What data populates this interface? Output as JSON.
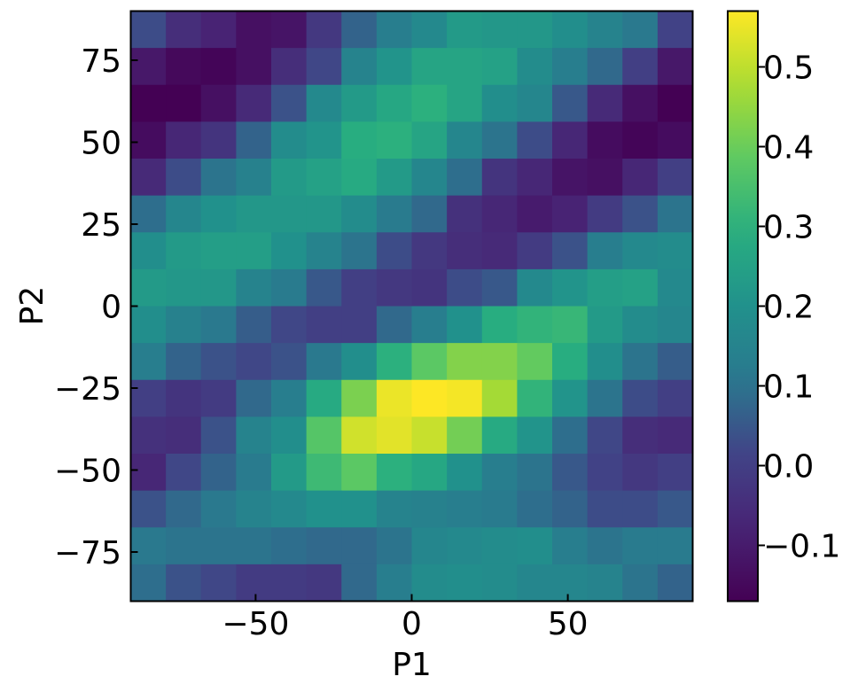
{
  "chart_data": {
    "type": "heatmap",
    "title": "",
    "xlabel": "P1",
    "ylabel": "P2",
    "xlim": [
      -90,
      90
    ],
    "ylim": [
      -90,
      90
    ],
    "x_ticks": [
      -50,
      0,
      50
    ],
    "x_tick_labels": [
      "−50",
      "0",
      "50"
    ],
    "y_ticks": [
      -75,
      -50,
      -25,
      0,
      25,
      50,
      75
    ],
    "y_tick_labels": [
      "−75",
      "−50",
      "−25",
      "0",
      "25",
      "50",
      "75"
    ],
    "colorbar": {
      "colormap": "viridis",
      "vmin": -0.17,
      "vmax": 0.57,
      "ticks": [
        -0.1,
        0.0,
        0.1,
        0.2,
        0.3,
        0.4,
        0.5
      ],
      "tick_labels": [
        "−0.1",
        "0.0",
        "0.1",
        "0.2",
        "0.3",
        "0.4",
        "0.5"
      ]
    },
    "grid": false,
    "rows_order": "top_to_bottom",
    "values": [
      [
        0.03,
        -0.05,
        -0.08,
        -0.13,
        -0.12,
        -0.02,
        0.07,
        0.13,
        0.17,
        0.23,
        0.22,
        0.22,
        0.19,
        0.15,
        0.11,
        0.01
      ],
      [
        -0.11,
        -0.15,
        -0.16,
        -0.13,
        -0.05,
        0.02,
        0.15,
        0.21,
        0.26,
        0.26,
        0.25,
        0.18,
        0.13,
        0.08,
        0.0,
        -0.11
      ],
      [
        -0.17,
        -0.17,
        -0.13,
        -0.06,
        0.04,
        0.17,
        0.23,
        0.27,
        0.3,
        0.26,
        0.19,
        0.16,
        0.05,
        -0.06,
        -0.13,
        -0.17
      ],
      [
        -0.14,
        -0.07,
        -0.03,
        0.07,
        0.18,
        0.21,
        0.29,
        0.3,
        0.26,
        0.16,
        0.1,
        0.03,
        -0.07,
        -0.14,
        -0.16,
        -0.14
      ],
      [
        -0.06,
        0.03,
        0.1,
        0.14,
        0.23,
        0.25,
        0.28,
        0.23,
        0.16,
        0.09,
        -0.03,
        -0.07,
        -0.12,
        -0.13,
        -0.07,
        0.0
      ],
      [
        0.09,
        0.16,
        0.2,
        0.22,
        0.22,
        0.22,
        0.18,
        0.12,
        0.08,
        -0.04,
        -0.07,
        -0.1,
        -0.08,
        -0.01,
        0.04,
        0.1
      ],
      [
        0.19,
        0.23,
        0.24,
        0.24,
        0.2,
        0.15,
        0.1,
        0.03,
        -0.02,
        -0.05,
        -0.06,
        -0.01,
        0.04,
        0.13,
        0.17,
        0.18
      ],
      [
        0.23,
        0.22,
        0.22,
        0.15,
        0.12,
        0.05,
        0.0,
        -0.02,
        -0.03,
        0.03,
        0.05,
        0.17,
        0.21,
        0.24,
        0.25,
        0.17
      ],
      [
        0.19,
        0.14,
        0.11,
        0.06,
        0.02,
        0.0,
        0.0,
        0.08,
        0.13,
        0.2,
        0.29,
        0.31,
        0.32,
        0.23,
        0.18,
        0.16
      ],
      [
        0.13,
        0.07,
        0.04,
        0.02,
        0.04,
        0.11,
        0.19,
        0.3,
        0.38,
        0.43,
        0.43,
        0.39,
        0.29,
        0.19,
        0.1,
        0.06
      ],
      [
        0.0,
        -0.03,
        -0.01,
        0.08,
        0.13,
        0.28,
        0.42,
        0.55,
        0.57,
        0.56,
        0.47,
        0.31,
        0.21,
        0.1,
        0.03,
        0.0
      ],
      [
        -0.04,
        -0.05,
        0.04,
        0.15,
        0.19,
        0.37,
        0.52,
        0.54,
        0.51,
        0.41,
        0.28,
        0.21,
        0.09,
        0.02,
        -0.05,
        -0.06
      ],
      [
        -0.07,
        0.02,
        0.07,
        0.12,
        0.23,
        0.33,
        0.38,
        0.3,
        0.27,
        0.2,
        0.13,
        0.1,
        0.05,
        0.01,
        -0.02,
        0.0
      ],
      [
        0.04,
        0.08,
        0.11,
        0.15,
        0.17,
        0.2,
        0.2,
        0.15,
        0.14,
        0.13,
        0.12,
        0.09,
        0.07,
        0.03,
        0.03,
        0.05
      ],
      [
        0.11,
        0.1,
        0.1,
        0.1,
        0.09,
        0.08,
        0.08,
        0.1,
        0.16,
        0.17,
        0.18,
        0.19,
        0.13,
        0.1,
        0.12,
        0.12
      ],
      [
        0.09,
        0.04,
        0.02,
        -0.01,
        -0.01,
        -0.02,
        0.08,
        0.13,
        0.18,
        0.19,
        0.18,
        0.16,
        0.16,
        0.15,
        0.1,
        0.07
      ]
    ]
  }
}
